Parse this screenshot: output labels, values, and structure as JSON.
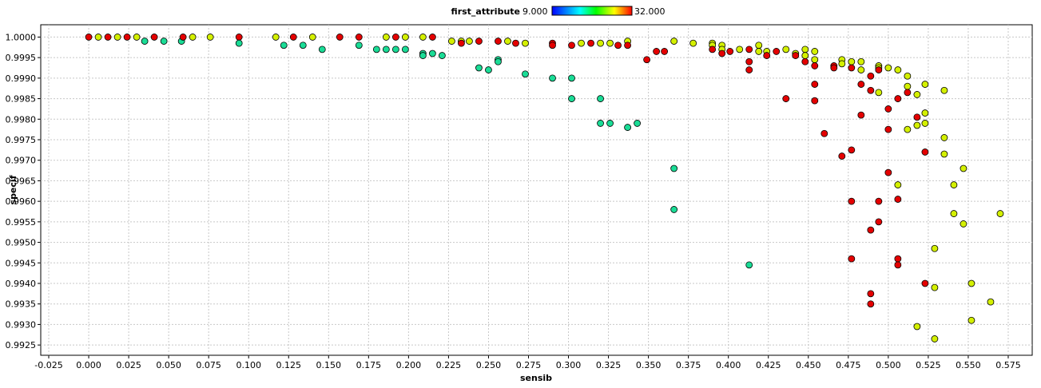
{
  "chart_data": {
    "type": "scatter",
    "xlabel": "sensib",
    "ylabel": "specif",
    "xlim": [
      -0.03,
      0.59
    ],
    "ylim": [
      0.99225,
      1.0003
    ],
    "x_ticks": [
      "-0.025",
      "0.000",
      "0.025",
      "0.050",
      "0.075",
      "0.100",
      "0.125",
      "0.150",
      "0.175",
      "0.200",
      "0.225",
      "0.250",
      "0.275",
      "0.300",
      "0.325",
      "0.350",
      "0.375",
      "0.400",
      "0.425",
      "0.450",
      "0.475",
      "0.500",
      "0.525",
      "0.550",
      "0.575"
    ],
    "y_ticks": [
      "0.9925",
      "0.9930",
      "0.9935",
      "0.9940",
      "0.9945",
      "0.9950",
      "0.9955",
      "0.9960",
      "0.9965",
      "0.9970",
      "0.9975",
      "0.9980",
      "0.9985",
      "0.9990",
      "0.9995",
      "1.0000"
    ],
    "grid": true,
    "color_legend": {
      "attribute": "first_attribute",
      "min_label": "9.000",
      "max_label": "32.000",
      "min": 9,
      "max": 32,
      "gradient": [
        "#0000ff",
        "#00ff00",
        "#ffff00",
        "#ff0000"
      ],
      "placement": "top-center"
    },
    "colors": {
      "red": "#e40000",
      "yellow": "#d4f000",
      "teal": "#1adc96"
    },
    "points": [
      [
        0.0,
        1.0,
        "red"
      ],
      [
        0.006,
        1.0,
        "yellow"
      ],
      [
        0.012,
        1.0,
        "red"
      ],
      [
        0.018,
        1.0,
        "yellow"
      ],
      [
        0.024,
        1.0,
        "red"
      ],
      [
        0.03,
        1.0,
        "yellow"
      ],
      [
        0.035,
        0.9999,
        "teal"
      ],
      [
        0.041,
        1.0,
        "red"
      ],
      [
        0.047,
        0.9999,
        "teal"
      ],
      [
        0.058,
        0.9999,
        "teal"
      ],
      [
        0.059,
        1.0,
        "red"
      ],
      [
        0.065,
        1.0,
        "yellow"
      ],
      [
        0.076,
        1.0,
        "yellow"
      ],
      [
        0.094,
        1.0,
        "red"
      ],
      [
        0.094,
        0.99985,
        "teal"
      ],
      [
        0.117,
        1.0,
        "yellow"
      ],
      [
        0.122,
        0.9998,
        "teal"
      ],
      [
        0.128,
        1.0,
        "red"
      ],
      [
        0.134,
        0.9998,
        "teal"
      ],
      [
        0.14,
        1.0,
        "yellow"
      ],
      [
        0.146,
        0.9997,
        "teal"
      ],
      [
        0.157,
        1.0,
        "red"
      ],
      [
        0.169,
        1.0,
        "red"
      ],
      [
        0.169,
        0.9998,
        "teal"
      ],
      [
        0.18,
        0.9997,
        "teal"
      ],
      [
        0.186,
        1.0,
        "yellow"
      ],
      [
        0.186,
        0.9997,
        "teal"
      ],
      [
        0.192,
        1.0,
        "red"
      ],
      [
        0.192,
        0.9997,
        "teal"
      ],
      [
        0.198,
        1.0,
        "yellow"
      ],
      [
        0.198,
        0.9997,
        "teal"
      ],
      [
        0.209,
        1.0,
        "yellow"
      ],
      [
        0.209,
        0.9996,
        "teal"
      ],
      [
        0.209,
        0.99955,
        "teal"
      ],
      [
        0.215,
        1.0,
        "red"
      ],
      [
        0.215,
        0.9996,
        "teal"
      ],
      [
        0.221,
        0.99955,
        "teal"
      ],
      [
        0.227,
        0.9999,
        "yellow"
      ],
      [
        0.233,
        0.9999,
        "yellow"
      ],
      [
        0.233,
        0.99985,
        "red"
      ],
      [
        0.238,
        0.9999,
        "yellow"
      ],
      [
        0.244,
        0.9999,
        "red"
      ],
      [
        0.244,
        0.99925,
        "teal"
      ],
      [
        0.25,
        0.9992,
        "teal"
      ],
      [
        0.256,
        0.9999,
        "red"
      ],
      [
        0.256,
        0.99945,
        "teal"
      ],
      [
        0.256,
        0.9994,
        "teal"
      ],
      [
        0.262,
        0.9999,
        "yellow"
      ],
      [
        0.267,
        0.99985,
        "red"
      ],
      [
        0.273,
        0.99985,
        "yellow"
      ],
      [
        0.273,
        0.9991,
        "teal"
      ],
      [
        0.29,
        0.99985,
        "red"
      ],
      [
        0.29,
        0.9998,
        "red"
      ],
      [
        0.29,
        0.999,
        "teal"
      ],
      [
        0.302,
        0.9998,
        "red"
      ],
      [
        0.302,
        0.999,
        "teal"
      ],
      [
        0.302,
        0.9985,
        "teal"
      ],
      [
        0.308,
        0.99985,
        "yellow"
      ],
      [
        0.314,
        0.99985,
        "red"
      ],
      [
        0.32,
        0.99985,
        "yellow"
      ],
      [
        0.32,
        0.9985,
        "teal"
      ],
      [
        0.32,
        0.9979,
        "teal"
      ],
      [
        0.326,
        0.99985,
        "yellow"
      ],
      [
        0.326,
        0.9979,
        "teal"
      ],
      [
        0.331,
        0.9998,
        "red"
      ],
      [
        0.337,
        0.9999,
        "yellow"
      ],
      [
        0.337,
        0.9998,
        "red"
      ],
      [
        0.337,
        0.9978,
        "teal"
      ],
      [
        0.343,
        0.9979,
        "teal"
      ],
      [
        0.349,
        0.99945,
        "red"
      ],
      [
        0.355,
        0.99965,
        "red"
      ],
      [
        0.36,
        0.99965,
        "red"
      ],
      [
        0.366,
        0.9999,
        "yellow"
      ],
      [
        0.366,
        0.9968,
        "teal"
      ],
      [
        0.366,
        0.9958,
        "teal"
      ],
      [
        0.378,
        0.99985,
        "yellow"
      ],
      [
        0.39,
        0.99985,
        "yellow"
      ],
      [
        0.39,
        0.9998,
        "yellow"
      ],
      [
        0.39,
        0.9997,
        "red"
      ],
      [
        0.396,
        0.9998,
        "yellow"
      ],
      [
        0.396,
        0.9997,
        "yellow"
      ],
      [
        0.396,
        0.9996,
        "red"
      ],
      [
        0.401,
        0.99965,
        "red"
      ],
      [
        0.407,
        0.9997,
        "yellow"
      ],
      [
        0.413,
        0.9997,
        "red"
      ],
      [
        0.413,
        0.9994,
        "red"
      ],
      [
        0.413,
        0.9992,
        "red"
      ],
      [
        0.413,
        0.99445,
        "teal"
      ],
      [
        0.419,
        0.9998,
        "yellow"
      ],
      [
        0.419,
        0.99965,
        "yellow"
      ],
      [
        0.424,
        0.99965,
        "yellow"
      ],
      [
        0.424,
        0.99955,
        "red"
      ],
      [
        0.43,
        0.99965,
        "red"
      ],
      [
        0.436,
        0.9997,
        "yellow"
      ],
      [
        0.436,
        0.9985,
        "red"
      ],
      [
        0.442,
        0.9996,
        "yellow"
      ],
      [
        0.442,
        0.99955,
        "red"
      ],
      [
        0.448,
        0.9997,
        "yellow"
      ],
      [
        0.448,
        0.99955,
        "yellow"
      ],
      [
        0.448,
        0.9994,
        "red"
      ],
      [
        0.454,
        0.99965,
        "yellow"
      ],
      [
        0.454,
        0.99945,
        "yellow"
      ],
      [
        0.454,
        0.9993,
        "red"
      ],
      [
        0.454,
        0.99885,
        "red"
      ],
      [
        0.454,
        0.99845,
        "red"
      ],
      [
        0.46,
        0.99765,
        "red"
      ],
      [
        0.466,
        0.9993,
        "red"
      ],
      [
        0.466,
        0.99925,
        "red"
      ],
      [
        0.471,
        0.99945,
        "yellow"
      ],
      [
        0.471,
        0.99935,
        "yellow"
      ],
      [
        0.471,
        0.9971,
        "red"
      ],
      [
        0.477,
        0.9994,
        "yellow"
      ],
      [
        0.477,
        0.99925,
        "red"
      ],
      [
        0.477,
        0.99725,
        "red"
      ],
      [
        0.477,
        0.996,
        "red"
      ],
      [
        0.477,
        0.9946,
        "red"
      ],
      [
        0.483,
        0.9994,
        "yellow"
      ],
      [
        0.483,
        0.9992,
        "yellow"
      ],
      [
        0.483,
        0.99885,
        "red"
      ],
      [
        0.483,
        0.9981,
        "red"
      ],
      [
        0.489,
        0.99905,
        "red"
      ],
      [
        0.489,
        0.9987,
        "red"
      ],
      [
        0.489,
        0.9953,
        "red"
      ],
      [
        0.489,
        0.99375,
        "red"
      ],
      [
        0.489,
        0.9935,
        "red"
      ],
      [
        0.494,
        0.9993,
        "yellow"
      ],
      [
        0.494,
        0.99925,
        "yellow"
      ],
      [
        0.494,
        0.9992,
        "red"
      ],
      [
        0.494,
        0.99865,
        "yellow"
      ],
      [
        0.494,
        0.996,
        "red"
      ],
      [
        0.494,
        0.9955,
        "red"
      ],
      [
        0.5,
        0.99925,
        "yellow"
      ],
      [
        0.5,
        0.99825,
        "red"
      ],
      [
        0.5,
        0.99775,
        "red"
      ],
      [
        0.5,
        0.9967,
        "red"
      ],
      [
        0.506,
        0.9992,
        "yellow"
      ],
      [
        0.506,
        0.9985,
        "red"
      ],
      [
        0.506,
        0.9964,
        "yellow"
      ],
      [
        0.506,
        0.99605,
        "red"
      ],
      [
        0.506,
        0.9946,
        "red"
      ],
      [
        0.506,
        0.99445,
        "red"
      ],
      [
        0.512,
        0.99905,
        "yellow"
      ],
      [
        0.512,
        0.9988,
        "yellow"
      ],
      [
        0.512,
        0.99865,
        "red"
      ],
      [
        0.512,
        0.99775,
        "yellow"
      ],
      [
        0.518,
        0.9986,
        "yellow"
      ],
      [
        0.518,
        0.99805,
        "red"
      ],
      [
        0.518,
        0.99785,
        "yellow"
      ],
      [
        0.518,
        0.99295,
        "yellow"
      ],
      [
        0.523,
        0.99885,
        "yellow"
      ],
      [
        0.523,
        0.99815,
        "yellow"
      ],
      [
        0.523,
        0.9979,
        "yellow"
      ],
      [
        0.523,
        0.9972,
        "red"
      ],
      [
        0.523,
        0.994,
        "red"
      ],
      [
        0.529,
        0.99485,
        "yellow"
      ],
      [
        0.529,
        0.9939,
        "yellow"
      ],
      [
        0.529,
        0.99265,
        "yellow"
      ],
      [
        0.535,
        0.9987,
        "yellow"
      ],
      [
        0.535,
        0.99755,
        "yellow"
      ],
      [
        0.535,
        0.99715,
        "yellow"
      ],
      [
        0.541,
        0.9964,
        "yellow"
      ],
      [
        0.541,
        0.9957,
        "yellow"
      ],
      [
        0.547,
        0.9968,
        "yellow"
      ],
      [
        0.547,
        0.99545,
        "yellow"
      ],
      [
        0.552,
        0.994,
        "yellow"
      ],
      [
        0.552,
        0.9931,
        "yellow"
      ],
      [
        0.564,
        0.99355,
        "yellow"
      ],
      [
        0.57,
        0.9957,
        "yellow"
      ]
    ]
  }
}
